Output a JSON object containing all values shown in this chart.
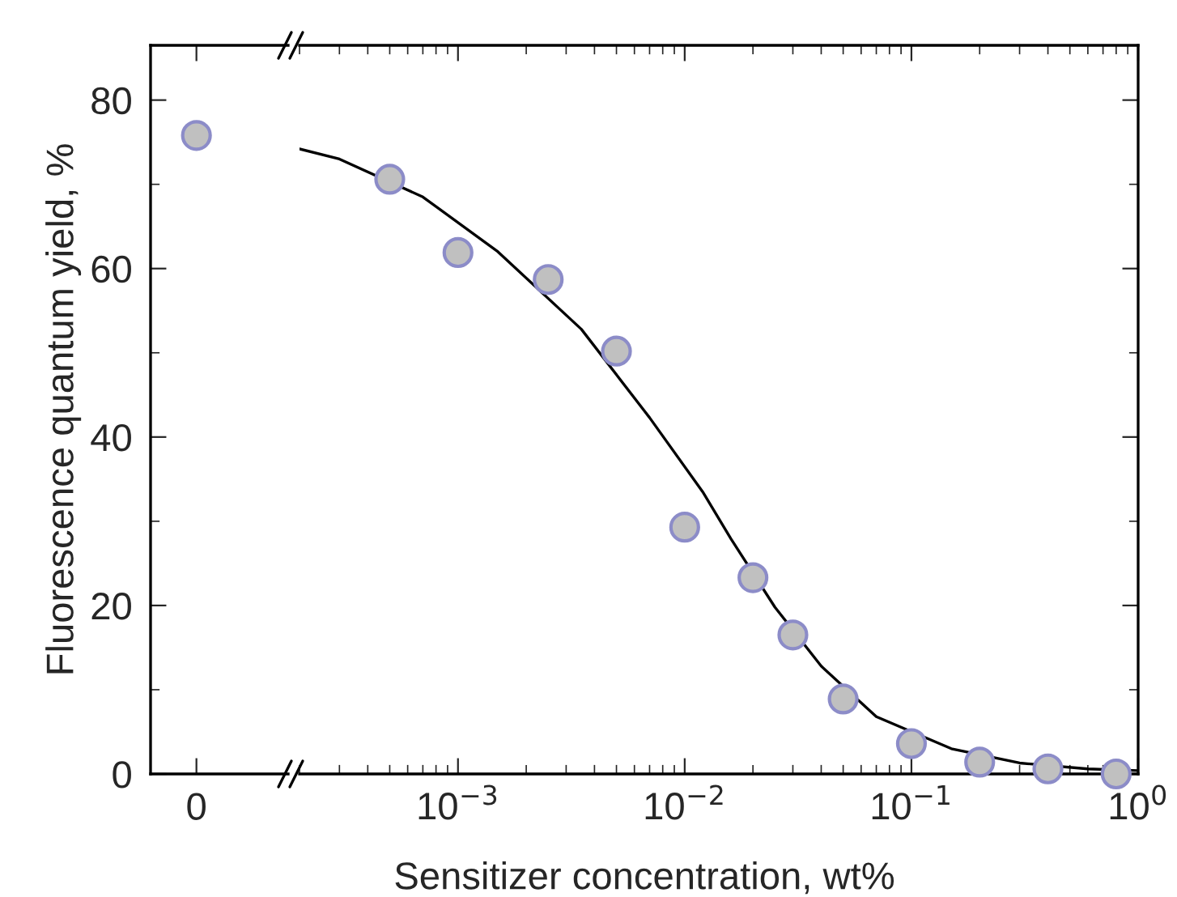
{
  "chart_data": [
    {
      "type": "scatter",
      "ylabel": "Fluorescence quantum yield, %",
      "categories": [
        "0"
      ],
      "ylim": [
        0,
        86.5
      ],
      "yticks": [
        0,
        20,
        40,
        60,
        80
      ],
      "marker": "circle",
      "tick_labels": true,
      "series": [
        {
          "color": "#c0c0c0",
          "values": [
            75.8
          ]
        }
      ]
    },
    {
      "type": "scatter",
      "xlabel": "Sensitizer concentration, wt%",
      "log": "x",
      "xlim": [
        0.0002,
        1
      ],
      "xticks": [
        {
          "value": 0.001,
          "label": "10$^{−3}$"
        },
        {
          "value": 0.01,
          "label": "10$^{−2}$"
        },
        {
          "value": 0.1,
          "label": "10$^{−1}$"
        },
        {
          "value": 1,
          "label": "10$^{0}$"
        }
      ],
      "ylim": [
        0,
        86.5
      ],
      "yticks": [
        0,
        20,
        40,
        60,
        80
      ],
      "tick_labels": "x",
      "marker": "circle",
      "series": [
        {
          "type": "line",
          "color": "#000000",
          "marker": "none",
          "x": [
            0.0002,
            0.0003,
            0.0007,
            0.0015,
            0.0035,
            0.007,
            0.012,
            0.016,
            0.025,
            0.04,
            0.07,
            0.15,
            0.3,
            0.6,
            1
          ],
          "values": [
            74.2,
            73.0,
            68.5,
            62.0,
            52.8,
            42.3,
            33.5,
            27.9,
            19.8,
            12.8,
            6.8,
            3.0,
            1.3,
            0.6,
            0.4
          ]
        },
        {
          "color": "#c0c0c0",
          "x": [
            0.0005,
            0.001,
            0.0025,
            0.005,
            0.01,
            0.02,
            0.03,
            0.05,
            0.1,
            0.2,
            0.4,
            0.8
          ],
          "values": [
            70.6,
            61.9,
            58.7,
            50.2,
            29.3,
            23.3,
            16.5,
            8.9,
            3.6,
            1.4,
            0.6,
            0.0
          ]
        }
      ]
    }
  ]
}
